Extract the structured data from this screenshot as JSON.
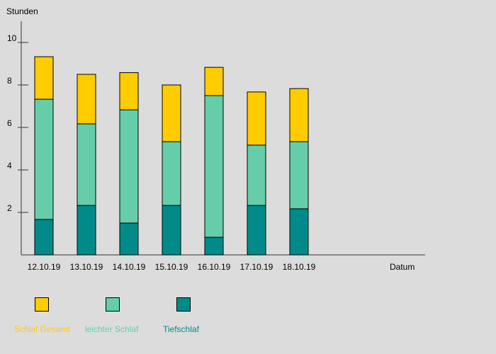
{
  "chart_data": {
    "type": "bar",
    "stacked": true,
    "ylabel": "Stunden",
    "xlabel": "Datum",
    "ylim": [
      0,
      11
    ],
    "yticks": [
      2,
      4,
      6,
      8,
      10
    ],
    "grid": false,
    "categories": [
      "12.10.19",
      "13.10.19",
      "14.10.19",
      "15.10.19",
      "16.10.19",
      "17.10.19",
      "18.10.19"
    ],
    "series": [
      {
        "name": "Tiefschlaf",
        "color": "#008b8a",
        "values": [
          1.67,
          2.33,
          1.5,
          2.33,
          0.83,
          2.33,
          2.17
        ]
      },
      {
        "name": "leichter Schlaf",
        "color": "#66cdaa",
        "values": [
          5.66,
          3.84,
          5.33,
          3.0,
          6.67,
          2.84,
          3.16
        ]
      },
      {
        "name": "Schlaf Gesamt",
        "color": "#ffcc00",
        "values": [
          2.0,
          2.33,
          1.75,
          2.67,
          1.33,
          2.5,
          2.5
        ]
      }
    ],
    "totals": [
      9.33,
      8.5,
      8.58,
      8.0,
      8.83,
      7.67,
      7.83
    ]
  },
  "legend": {
    "items": [
      {
        "label": "Schlaf Gesamt",
        "color": "#ffcc00"
      },
      {
        "label": "leichter Schlaf",
        "color": "#66cdaa"
      },
      {
        "label": "Tiefschlaf",
        "color": "#008b8a"
      }
    ]
  }
}
